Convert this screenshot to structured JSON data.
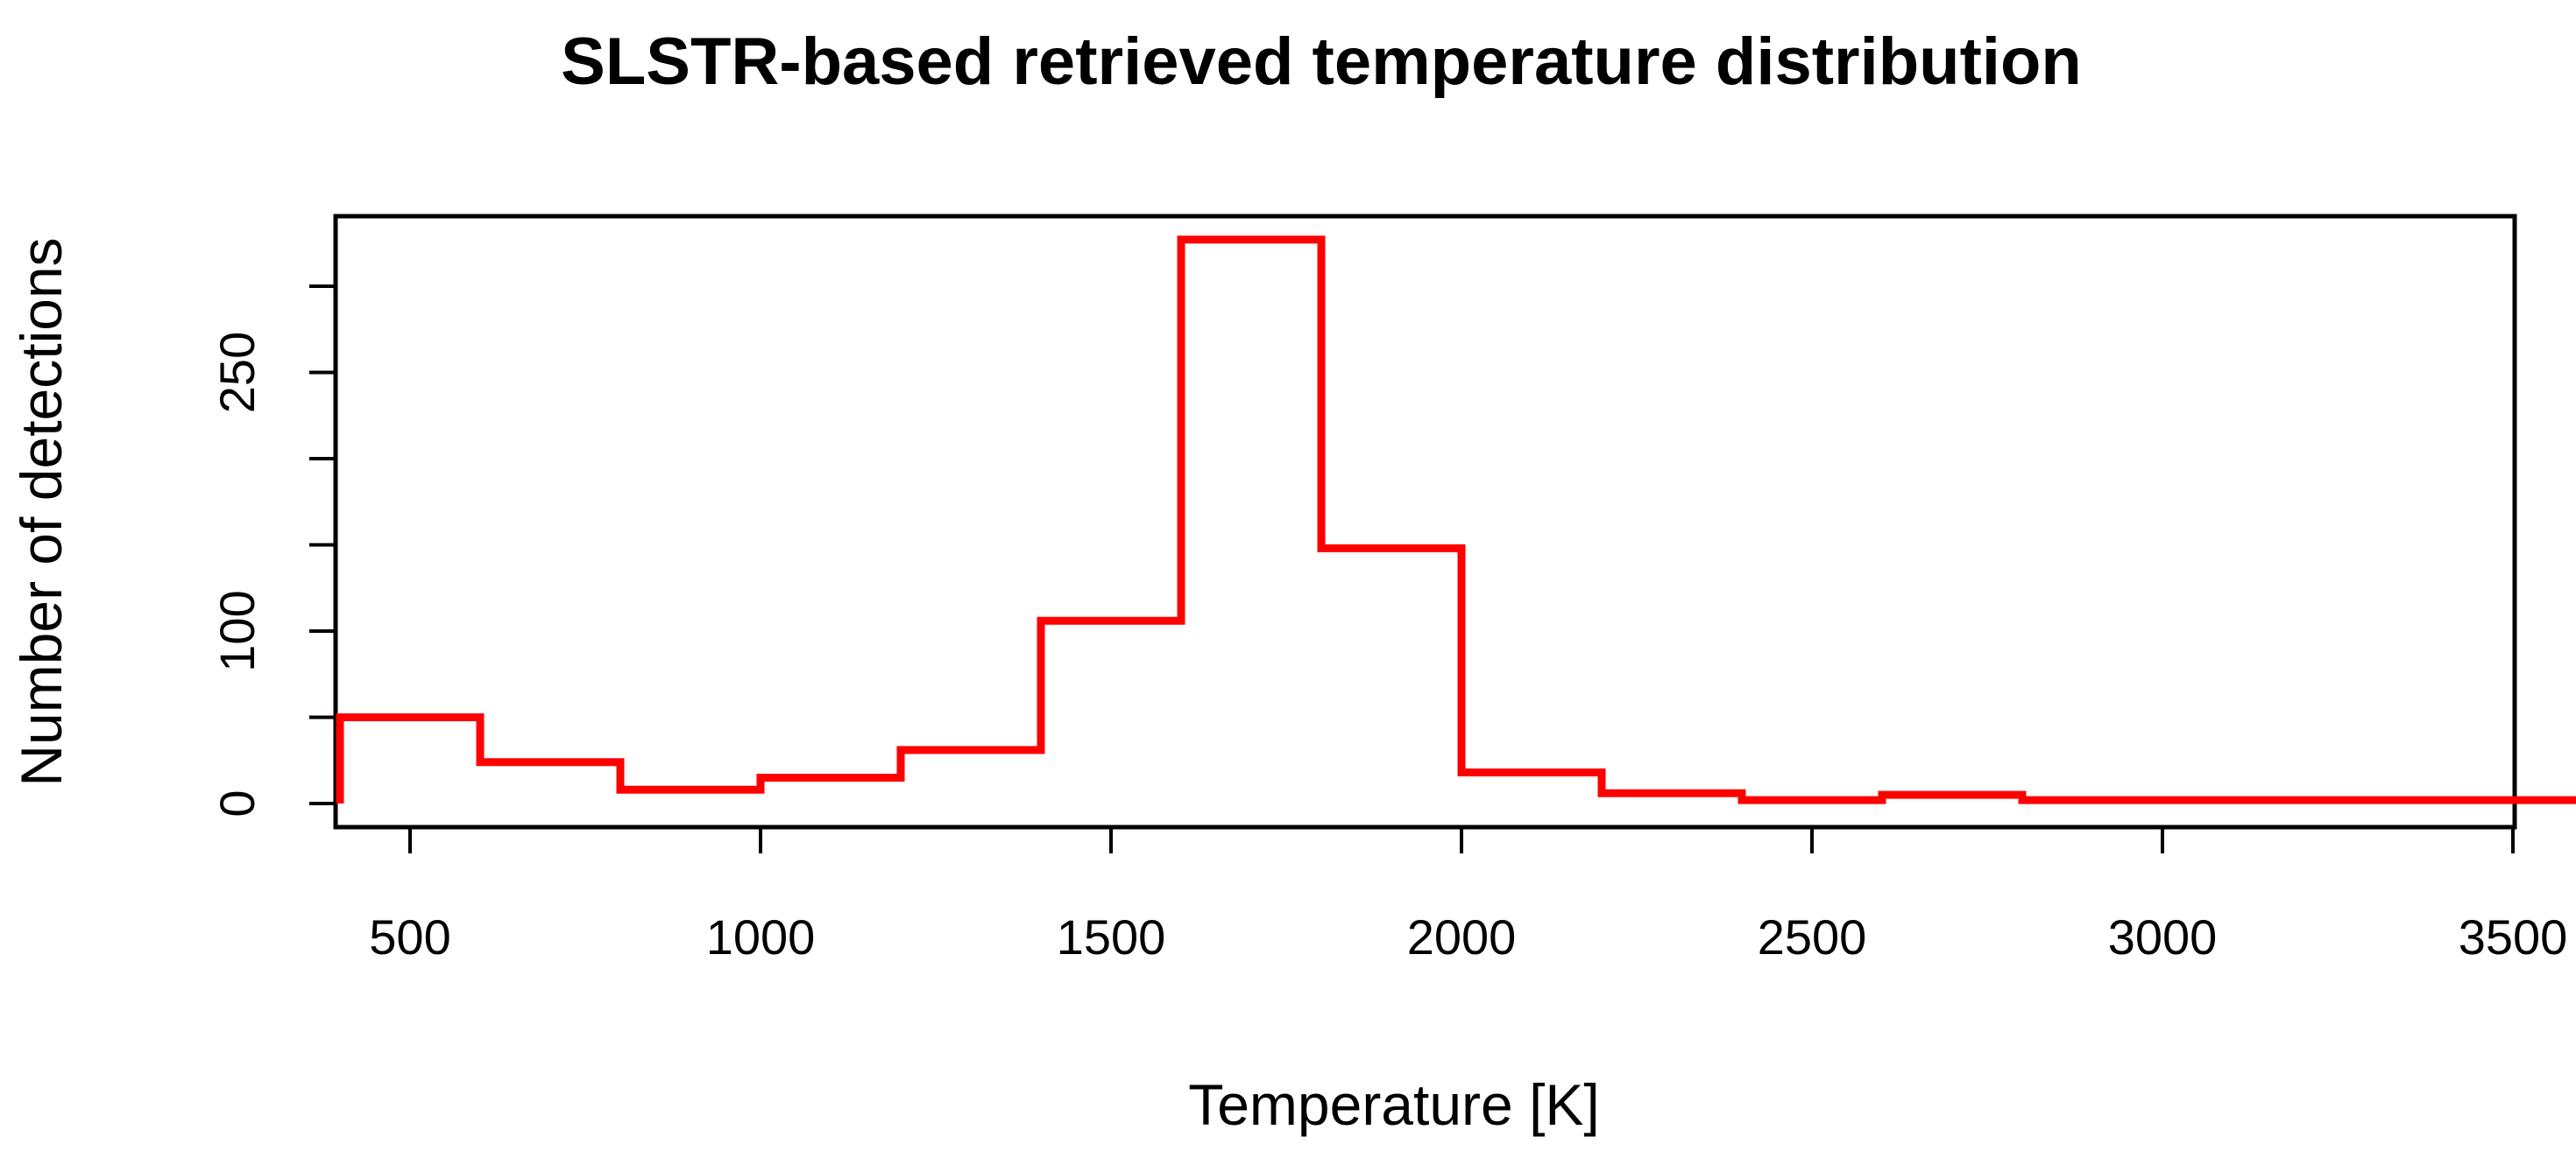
{
  "chart_data": {
    "type": "line",
    "subtype": "step",
    "title": "SLSTR-based retrieved temperature distribution",
    "xlabel": "Temperature [K]",
    "ylabel": "Number of detections",
    "xlim": [
      400,
      3600
    ],
    "ylim": [
      0,
      300
    ],
    "x_ticks": [
      500,
      1000,
      1500,
      2000,
      2500,
      3000,
      3500
    ],
    "x_tick_labels": [
      "500",
      "1000",
      "1500",
      "2000",
      "2500",
      "3000",
      "3500"
    ],
    "y_ticks": [
      0,
      50,
      100,
      150,
      200,
      250,
      300
    ],
    "y_tick_labels": [
      "0",
      "",
      "100",
      "",
      "",
      "250",
      ""
    ],
    "bin_edges": [
      400,
      600,
      800,
      1000,
      1200,
      1400,
      1600,
      1800,
      2000,
      2200,
      2400,
      2600,
      2800,
      3000,
      3200,
      3400,
      3600
    ],
    "series": [
      {
        "values": [
          50,
          24,
          8,
          15,
          31,
          106,
          327,
          148,
          18,
          6,
          2,
          5,
          2,
          2,
          2,
          2
        ],
        "color": "#ff0000"
      }
    ],
    "grid": false,
    "legend": false
  }
}
